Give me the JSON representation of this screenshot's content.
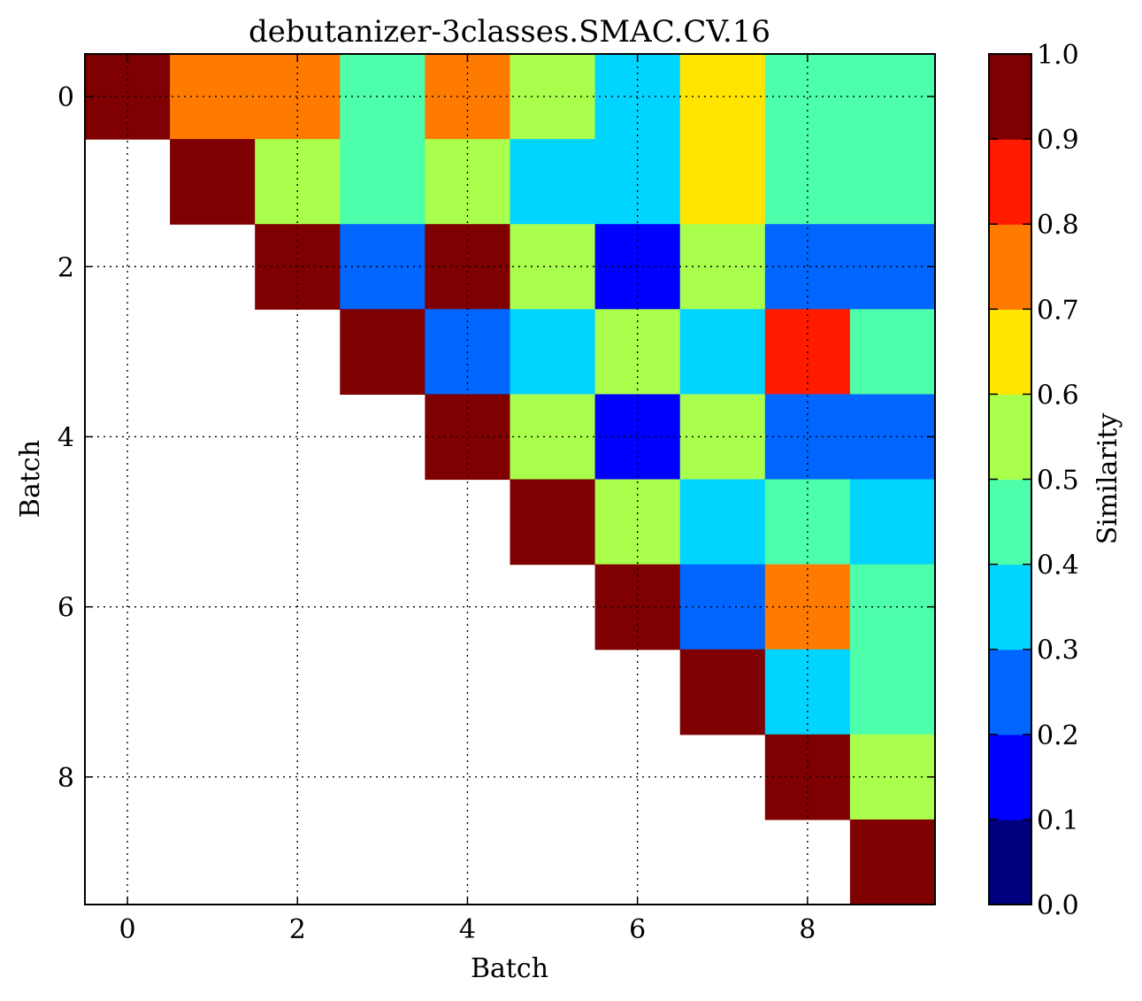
{
  "chart_data": {
    "type": "heatmap",
    "title": "debutanizer-3classes.SMAC.CV.16",
    "xlabel": "Batch",
    "ylabel": "Batch",
    "colorbar_label": "Similarity",
    "x_ticks": [
      "0",
      "2",
      "4",
      "6",
      "8"
    ],
    "y_ticks": [
      "0",
      "2",
      "4",
      "6",
      "8"
    ],
    "colorbar_ticks": [
      "0.0",
      "0.1",
      "0.2",
      "0.3",
      "0.4",
      "0.5",
      "0.6",
      "0.7",
      "0.8",
      "0.9",
      "1.0"
    ],
    "clim": [
      0,
      1
    ],
    "grid": true,
    "colormap_bins": [
      "#00007f",
      "#0000ff",
      "#0066ff",
      "#00d4ff",
      "#4dffaa",
      "#aaff4d",
      "#ffe500",
      "#ff7a00",
      "#ff1a00",
      "#7f0000"
    ],
    "matrix": [
      [
        1.0,
        0.75,
        0.75,
        0.45,
        0.75,
        0.55,
        0.35,
        0.65,
        0.45,
        0.45
      ],
      [
        null,
        1.0,
        0.55,
        0.45,
        0.55,
        0.35,
        0.35,
        0.65,
        0.45,
        0.45
      ],
      [
        null,
        null,
        1.0,
        0.25,
        1.0,
        0.55,
        0.15,
        0.55,
        0.25,
        0.25
      ],
      [
        null,
        null,
        null,
        1.0,
        0.25,
        0.35,
        0.55,
        0.35,
        0.85,
        0.45
      ],
      [
        null,
        null,
        null,
        null,
        1.0,
        0.55,
        0.15,
        0.55,
        0.25,
        0.25
      ],
      [
        null,
        null,
        null,
        null,
        null,
        1.0,
        0.55,
        0.35,
        0.45,
        0.35
      ],
      [
        null,
        null,
        null,
        null,
        null,
        null,
        1.0,
        0.25,
        0.75,
        0.45
      ],
      [
        null,
        null,
        null,
        null,
        null,
        null,
        null,
        1.0,
        0.35,
        0.45
      ],
      [
        null,
        null,
        null,
        null,
        null,
        null,
        null,
        null,
        1.0,
        0.55
      ],
      [
        null,
        null,
        null,
        null,
        null,
        null,
        null,
        null,
        null,
        1.0
      ]
    ]
  }
}
